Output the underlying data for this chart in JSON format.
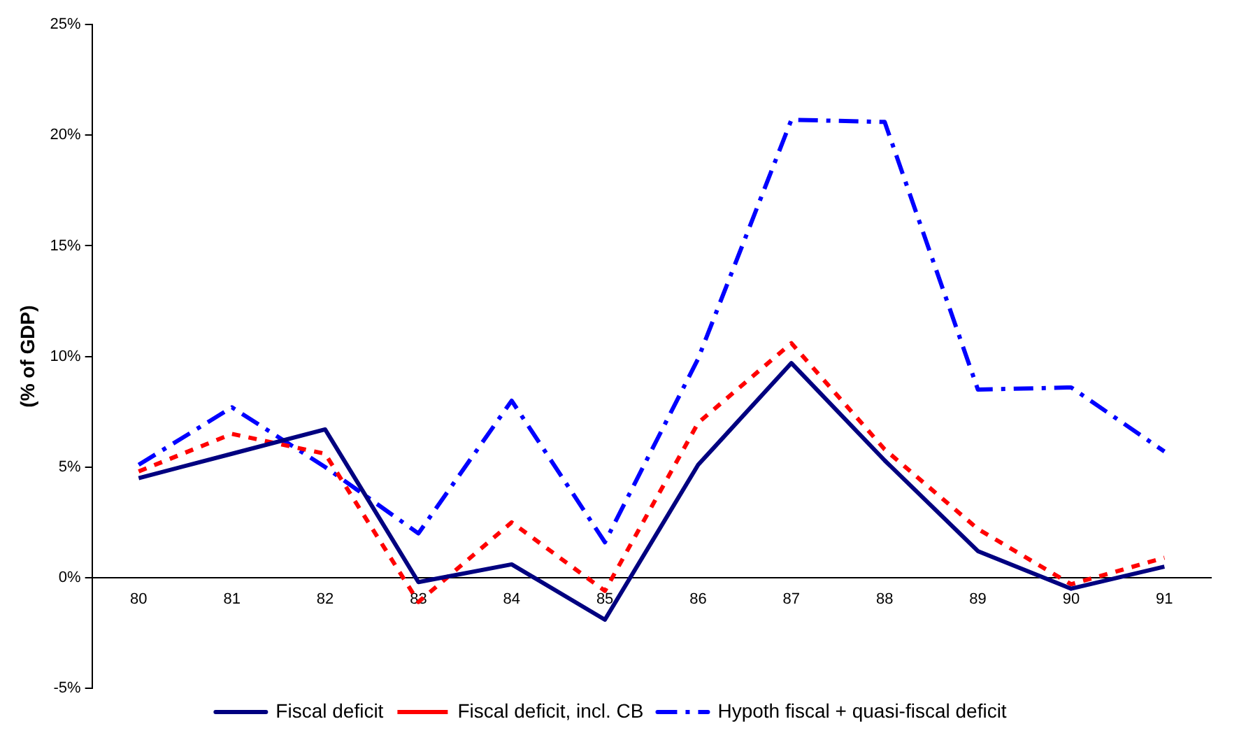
{
  "chart_data": {
    "type": "line",
    "ylabel": "(% of GDP)",
    "categories": [
      "80",
      "81",
      "82",
      "83",
      "84",
      "85",
      "86",
      "87",
      "88",
      "89",
      "90",
      "91"
    ],
    "series": [
      {
        "name": "Fiscal deficit",
        "color": "#000080",
        "line_style": "solid",
        "values": [
          4.5,
          5.6,
          6.7,
          -0.2,
          0.6,
          -1.9,
          5.1,
          9.7,
          5.3,
          1.2,
          -0.5,
          0.5
        ]
      },
      {
        "name": "Fiscal deficit, incl. CB",
        "color": "#ff0000",
        "line_style": "dashed",
        "values": [
          4.8,
          6.5,
          5.6,
          -1.1,
          2.5,
          -0.6,
          7.0,
          10.6,
          5.8,
          2.2,
          -0.3,
          0.9
        ]
      },
      {
        "name": "Hypoth fiscal + quasi-fiscal deficit",
        "color": "#0000ff",
        "line_style": "dashdot",
        "values": [
          5.1,
          7.7,
          5.0,
          2.0,
          8.0,
          1.6,
          9.9,
          20.7,
          20.6,
          8.5,
          8.6,
          5.7
        ]
      }
    ],
    "ylim": [
      -5,
      25
    ],
    "yticks": [
      {
        "value": -5,
        "label": "-5%"
      },
      {
        "value": 0,
        "label": "0%"
      },
      {
        "value": 5,
        "label": "5%"
      },
      {
        "value": 10,
        "label": "10%"
      },
      {
        "value": 15,
        "label": "15%"
      },
      {
        "value": 20,
        "label": "20%"
      },
      {
        "value": 25,
        "label": "25%"
      }
    ],
    "grid": false,
    "legend": "bottom",
    "marker": "none"
  }
}
